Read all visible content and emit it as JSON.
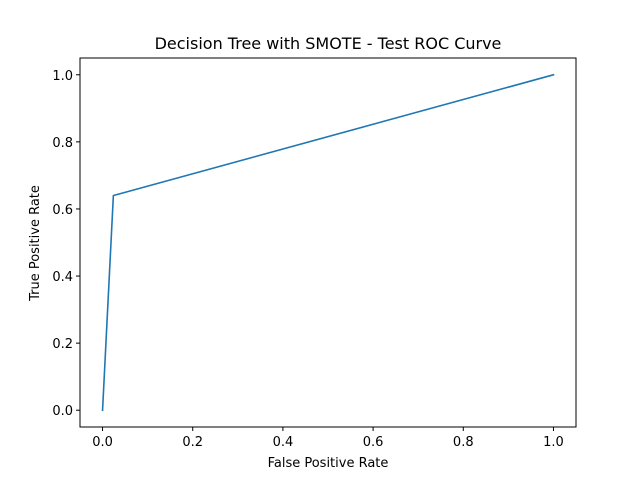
{
  "chart_data": {
    "type": "line",
    "title": "Decision Tree with SMOTE - Test ROC Curve",
    "xlabel": "False Positive Rate",
    "ylabel": "True Positive Rate",
    "xlim": [
      -0.05,
      1.05
    ],
    "ylim": [
      -0.05,
      1.05
    ],
    "xticks": [
      0.0,
      0.2,
      0.4,
      0.6,
      0.8,
      1.0
    ],
    "yticks": [
      0.0,
      0.2,
      0.4,
      0.6,
      0.8,
      1.0
    ],
    "xtick_labels": [
      "0.0",
      "0.2",
      "0.4",
      "0.6",
      "0.8",
      "1.0"
    ],
    "ytick_labels": [
      "0.0",
      "0.2",
      "0.4",
      "0.6",
      "0.8",
      "1.0"
    ],
    "grid": false,
    "series": [
      {
        "color": "#1f77b4",
        "x": [
          0.0,
          0.024,
          1.0
        ],
        "y": [
          0.0,
          0.64,
          1.0
        ]
      }
    ]
  }
}
